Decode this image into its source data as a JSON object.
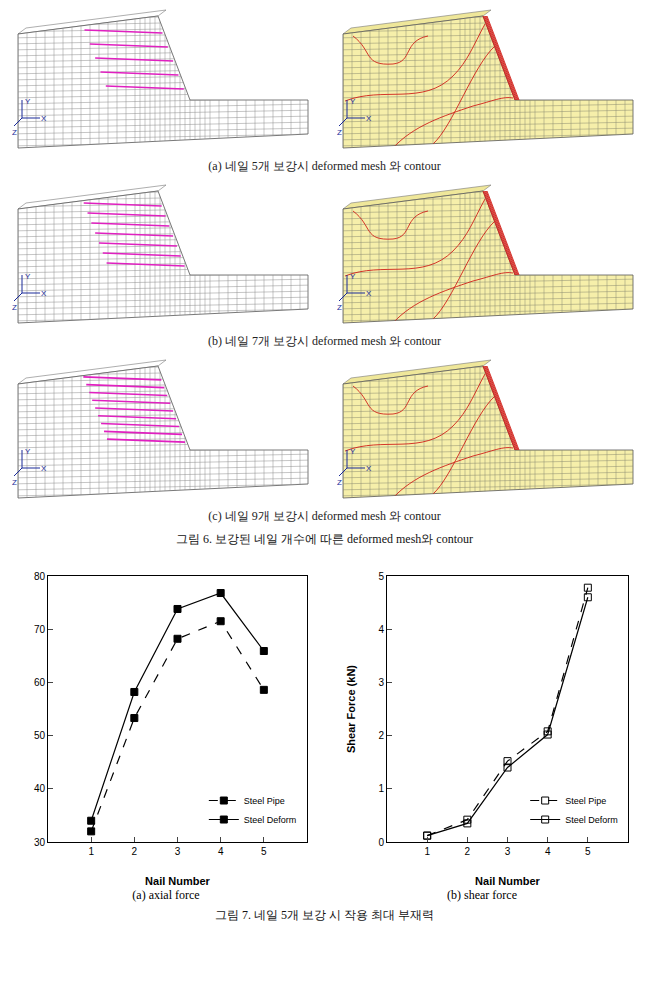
{
  "figure6": {
    "panels": [
      {
        "label": "(a) 네일 5개 보강시 deformed mesh 와 contour",
        "nails": 5
      },
      {
        "label": "(b) 네일 7개 보강시 deformed mesh 와 contour",
        "nails": 7
      },
      {
        "label": "(c) 네일 9개 보강시 deformed mesh 와 contour",
        "nails": 9
      }
    ],
    "axis_labels": [
      "X",
      "Y",
      "Z"
    ],
    "caption": "그림 6. 보강된 네일 개수에 따른 deformed mesh와 contour"
  },
  "chart_data": [
    {
      "type": "line",
      "caption": "(a) axial force",
      "x_label": "Nail Number",
      "x": [
        1,
        2,
        3,
        4,
        5
      ],
      "xlim": [
        0,
        6
      ],
      "xticks": [
        1,
        2,
        3,
        4,
        5
      ],
      "ylim": [
        30,
        80
      ],
      "yticks": [
        30,
        40,
        50,
        60,
        70,
        80
      ],
      "legend": "lower right",
      "series": [
        {
          "name": "Steel Pipe",
          "color": "#000000",
          "marker": "square",
          "line_style": "dash",
          "values": [
            32,
            53.3,
            68.2,
            71.5,
            58.6
          ]
        },
        {
          "name": "Steel Deform",
          "color": "#000000",
          "marker": "square",
          "line_style": "solid",
          "values": [
            34,
            58.2,
            73.8,
            76.8,
            65.9
          ]
        }
      ]
    },
    {
      "type": "line",
      "caption": "(b) shear force",
      "x_label": "Nail Number",
      "y_label": "Shear Force (kN)",
      "x": [
        1,
        2,
        3,
        4,
        5
      ],
      "xlim": [
        0,
        6
      ],
      "xticks": [
        1,
        2,
        3,
        4,
        5
      ],
      "ylim": [
        0,
        5
      ],
      "yticks": [
        0,
        1,
        2,
        3,
        4,
        5
      ],
      "legend": "lower right",
      "series": [
        {
          "name": "Steel Pipe",
          "color": "#000000",
          "marker": "square-open",
          "line_style": "dash",
          "values": [
            0.12,
            0.42,
            1.52,
            2.08,
            4.78
          ]
        },
        {
          "name": "Steel Deform",
          "color": "#000000",
          "marker": "square-open",
          "line_style": "solid",
          "values": [
            0.12,
            0.35,
            1.4,
            2.02,
            4.6
          ]
        }
      ]
    }
  ],
  "figure7_caption": "그림 7. 네일 5개 보강 시 작용 최대 부재력"
}
